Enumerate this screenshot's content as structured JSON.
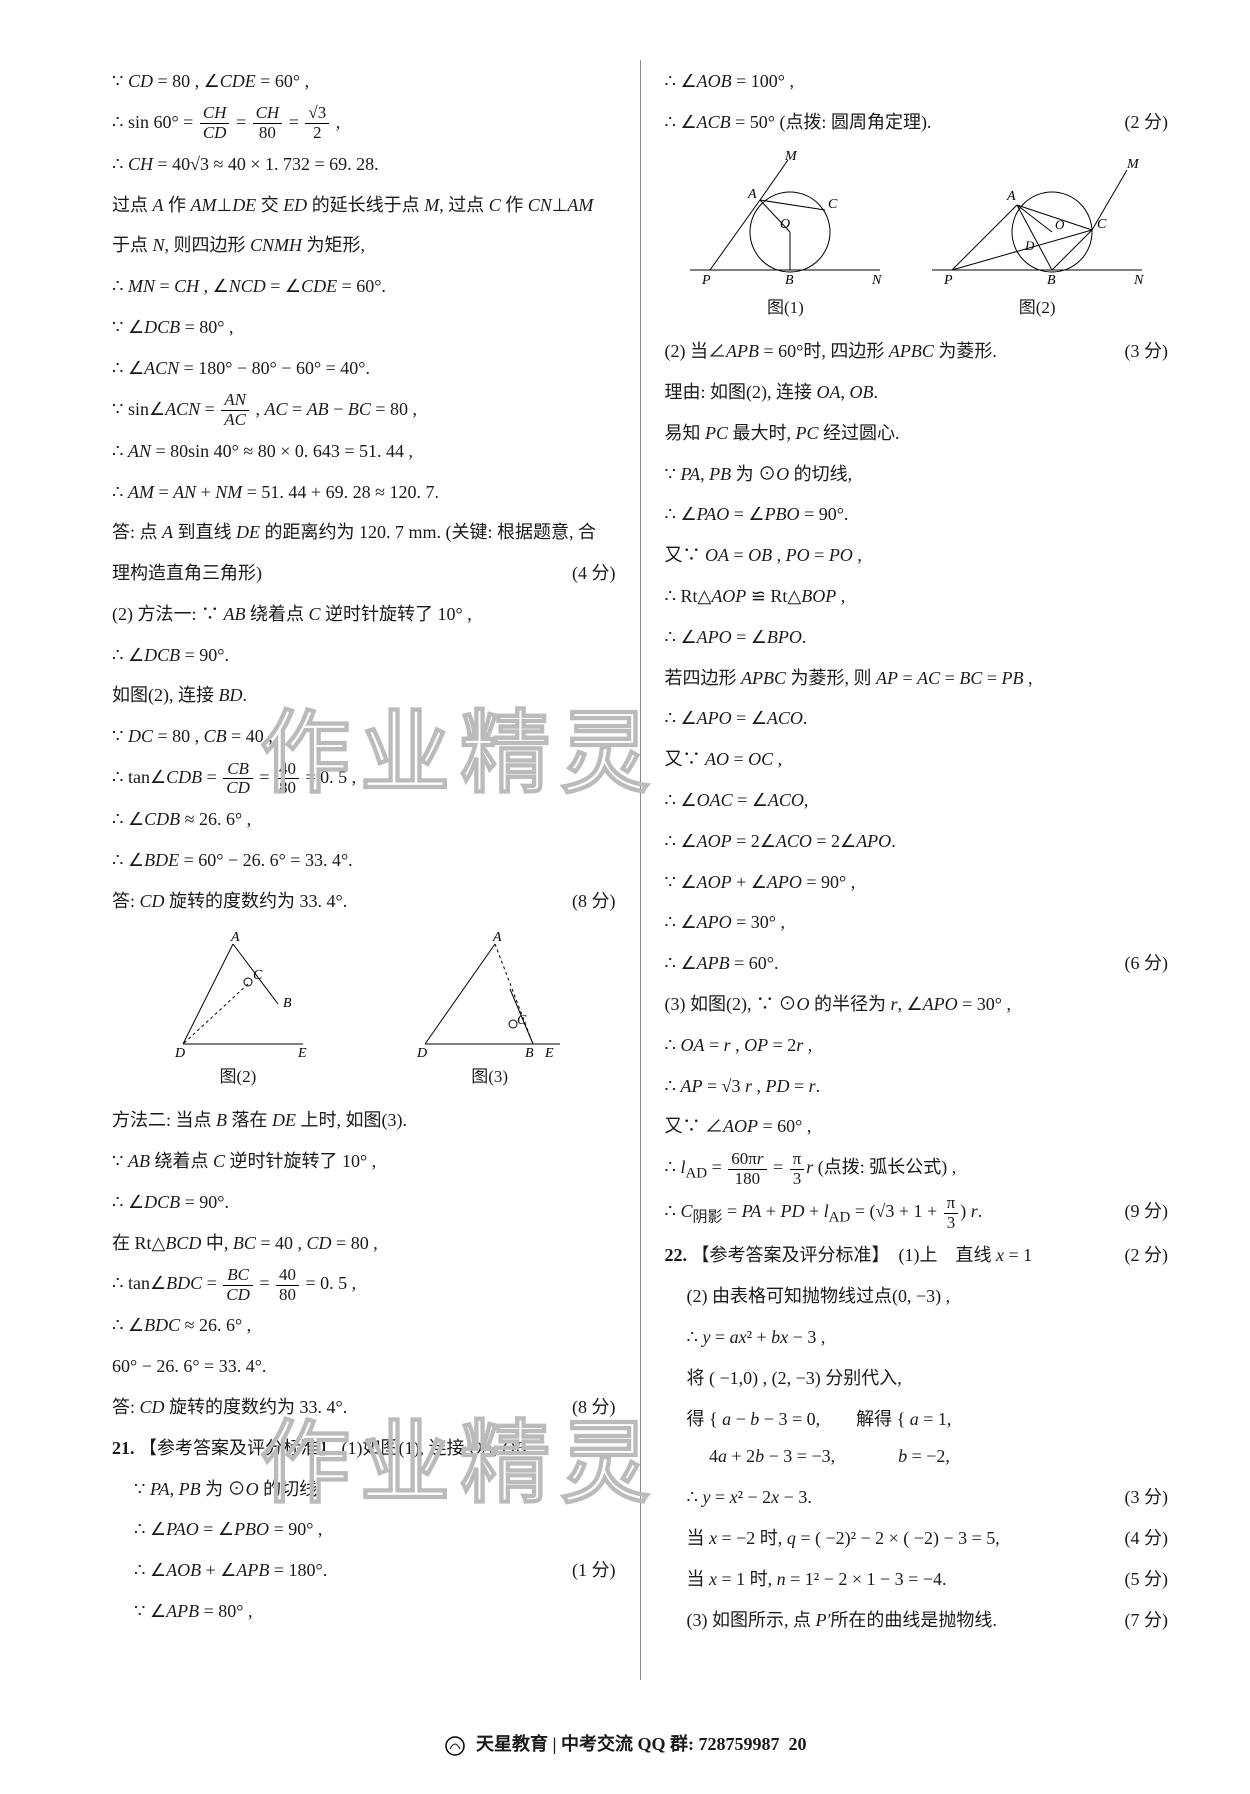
{
  "watermark": "作业精灵",
  "left": {
    "lines": [
      "∵ <span class='it'>CD</span> = 80 , ∠<span class='it'>CDE</span> = 60° ,",
      "∴ sin 60° = <span class='frac'><span class='num'><span class=it>CH</span></span><span class='den'><span class=it>CD</span></span></span> = <span class='frac'><span class='num'><span class=it>CH</span></span><span class='den'>80</span></span> = <span class='frac'><span class='num'>√3</span><span class='den'>2</span></span> ,",
      "∴ <span class='it'>CH</span> = 40√3 ≈ 40 × 1. 732 = 69. 28.",
      "过点 <span class='it'>A</span> 作 <span class='it'>AM</span>⊥<span class='it'>DE</span> 交 <span class='it'>ED</span> 的延长线于点 <span class='it'>M</span>, 过点 <span class='it'>C</span> 作 <span class='it'>CN</span>⊥<span class='it'>AM</span>",
      "于点 <span class='it'>N</span>, 则四边形 <span class='it'>CNMH</span> 为矩形,",
      "∴ <span class='it'>MN</span> = <span class='it'>CH</span> , ∠<span class='it'>NCD</span> = ∠<span class='it'>CDE</span> = 60°.",
      "∵ ∠<span class='it'>DCB</span> = 80° ,",
      "∴ ∠<span class='it'>ACN</span> = 180° − 80° − 60° = 40°.",
      "∵ sin∠<span class='it'>ACN</span> = <span class='frac'><span class='num'><span class=it>AN</span></span><span class='den'><span class=it>AC</span></span></span> , <span class='it'>AC</span> = <span class='it'>AB</span> − <span class='it'>BC</span> = 80 ,",
      "∴ <span class='it'>AN</span> = 80sin 40° ≈ 80 × 0. 643 = 51. 44 ,",
      "∴ <span class='it'>AM</span> = <span class='it'>AN</span> + <span class='it'>NM</span> = 51. 44 + 69. 28 ≈ 120. 7.",
      "答: 点 <span class='it'>A</span> 到直线 <span class='it'>DE</span> 的距离约为 120. 7 mm. (关键: 根据题意, 合",
      "理构造直角三角形)<span class='score'>(4 分)</span>",
      "(2) 方法一: ∵ <span class='it'>AB</span> 绕着点 <span class='it'>C</span> 逆时针旋转了 10° ,",
      "∴ ∠<span class='it'>DCB</span> = 90°.",
      "如图(2), 连接 <span class='it'>BD</span>.",
      "∵ <span class='it'>DC</span> = 80 , <span class='it'>CB</span> = 40 ,",
      "∴ tan∠<span class='it'>CDB</span> = <span class='frac'><span class='num'><span class=it>CB</span></span><span class='den'><span class=it>CD</span></span></span> = <span class='frac'><span class='num'>40</span><span class='den'>80</span></span> = 0. 5 ,",
      "∴ ∠<span class='it'>CDB</span> ≈ 26. 6° ,",
      "∴ ∠<span class='it'>BDE</span> = 60° − 26. 6° = 33. 4°.",
      "答: <span class='it'>CD</span> 旋转的度数约为 33. 4°.<span class='score'>(8 分)</span>"
    ],
    "fig2_label": "图(2)",
    "fig3_label": "图(3)",
    "lines2": [
      "方法二: 当点 <span class='it'>B</span> 落在 <span class='it'>DE</span> 上时, 如图(3).",
      "∵ <span class='it'>AB</span> 绕着点 <span class='it'>C</span> 逆时针旋转了 10° ,",
      "∴ ∠<span class='it'>DCB</span> = 90°.",
      "在 Rt△<span class='it'>BCD</span> 中, <span class='it'>BC</span> = 40 , <span class='it'>CD</span> = 80 ,",
      "∴ tan∠<span class='it'>BDC</span> = <span class='frac'><span class='num'><span class=it>BC</span></span><span class='den'><span class=it>CD</span></span></span> = <span class='frac'><span class='num'>40</span><span class='den'>80</span></span> = 0. 5 ,",
      "∴ ∠<span class='it'>BDC</span> ≈ 26. 6° ,",
      "60° − 26. 6° = 33. 4°.",
      "答: <span class='it'>CD</span> 旋转的度数约为 33. 4°.<span class='score'>(8 分)</span>"
    ],
    "q21": "21. 【参考答案及评分标准】 (1)如图(1), 连接 <span class='it'>OA</span>, <span class='it'>OB</span>.",
    "q21_lines": [
      "∵ <span class='it'>PA</span>, <span class='it'>PB</span> 为 ⊙<span class='it'>O</span> 的切线,",
      "∴ ∠<span class='it'>PAO</span> = ∠<span class='it'>PBO</span> = 90° ,",
      "∴ ∠<span class='it'>AOB</span> + ∠<span class='it'>APB</span> = 180°.<span class='score'>(1 分)</span>",
      "∵ ∠<span class='it'>APB</span> = 80° ,"
    ]
  },
  "right": {
    "lines": [
      "∴ ∠<span class='it'>AOB</span> = 100° ,",
      "∴ ∠<span class='it'>ACB</span> = 50° (点拨: 圆周角定理).<span class='score'>(2 分)</span>"
    ],
    "fig1_label": "图(1)",
    "fig2_label": "图(2)",
    "lines2": [
      "(2) 当∠<span class='it'>APB</span> = 60°时, 四边形 <span class='it'>APBC</span> 为菱形.<span class='score'>(3 分)</span>",
      "理由: 如图(2), 连接 <span class='it'>OA</span>, <span class='it'>OB</span>.",
      "易知 <span class='it'>PC</span> 最大时, <span class='it'>PC</span> 经过圆心.",
      "∵ <span class='it'>PA</span>, <span class='it'>PB</span> 为 ⊙<span class='it'>O</span> 的切线,",
      "∴ ∠<span class='it'>PAO</span> = ∠<span class='it'>PBO</span> = 90°.",
      "又∵ <span class='it'>OA</span> = <span class='it'>OB</span> , <span class='it'>PO</span> = <span class='it'>PO</span> ,",
      "∴ Rt△<span class='it'>AOP</span> ≌ Rt△<span class='it'>BOP</span> ,",
      "∴ ∠<span class='it'>APO</span> = ∠<span class='it'>BPO</span>.",
      "若四边形 <span class='it'>APBC</span> 为菱形, 则 <span class='it'>AP</span> = <span class='it'>AC</span> = <span class='it'>BC</span> = <span class='it'>PB</span> ,",
      "∴ ∠<span class='it'>APO</span> = ∠<span class='it'>ACO</span>.",
      "又∵ <span class='it'>AO</span> = <span class='it'>OC</span> ,",
      "∴ ∠<span class='it'>OAC</span> = ∠<span class='it'>ACO</span>,",
      "∴ ∠<span class='it'>AOP</span> = 2∠<span class='it'>ACO</span> = 2∠<span class='it'>APO</span>.",
      "∵ ∠<span class='it'>AOP</span> + ∠<span class='it'>APO</span> = 90° ,",
      "∴ ∠<span class='it'>APO</span> = 30° ,",
      "∴ ∠<span class='it'>APB</span> = 60°.<span class='score'>(6 分)</span>",
      "(3) 如图(2), ∵ ⊙<span class='it'>O</span> 的半径为 <span class='it'>r</span>, ∠<span class='it'>APO</span> = 30° ,",
      "∴ <span class='it'>OA</span> = <span class='it'>r</span> , <span class='it'>OP</span> = 2<span class='it'>r</span> ,",
      "∴ <span class='it'>AP</span> = √3 <span class='it'>r</span> , <span class='it'>PD</span> = <span class='it'>r</span>.",
      "又∵ ∠<span class='it'>AOP</span> = 60° ,",
      "∴ <span class='it'>l</span><sub>AD</sub> = <span class='frac'><span class='num'>60π<span class=it>r</span></span><span class='den'>180</span></span> = <span class='frac'><span class='num'>π</span><span class='den'>3</span></span><span class='it'>r</span> (点拨: 弧长公式) ,",
      "∴ <span class='it'>C</span><sub>阴影</sub> = <span class='it'>PA</span> + <span class='it'>PD</span> + <span class='it'>l</span><sub>AD</sub> = (√3 + 1 + <span class='frac'><span class='num'>π</span><span class='den'>3</span></span>) <span class='it'>r</span>.<span class='score'>(9 分)</span>"
    ],
    "q22": "22. 【参考答案及评分标准】　(1)上　直线 <span class='it'>x</span> = 1<span class='score'>(2 分)</span>",
    "q22_lines": [
      "(2) 由表格可知抛物线过点(0, −3) ,",
      "∴ <span class='it'>y</span> = <span class='it'>ax</span>² + <span class='it'>bx</span> − 3 ,",
      "将 ( −1,0) , (2, −3) 分别代入,",
      "得 &#123; <span class='it'>a</span> − <span class='it'>b</span> − 3 = 0,　　解得 &#123; <span class='it'>a</span> = 1,<br>&nbsp;&nbsp;&nbsp;&nbsp;&nbsp;4<span class='it'>a</span> + 2<span class='it'>b</span> − 3 = −3,　　　&nbsp;&nbsp;<span class='it'>b</span> = −2,",
      "∴ <span class='it'>y</span> = <span class='it'>x</span>² − 2<span class='it'>x</span> − 3.<span class='score'>(3 分)</span>",
      "当 <span class='it'>x</span> = −2 时, <span class='it'>q</span> = ( −2)² − 2 × ( −2) − 3 = 5,<span class='score'>(4 分)</span>",
      "当 <span class='it'>x</span> = 1 时, <span class='it'>n</span> = 1² − 2 × 1 − 3 = −4.<span class='score'>(5 分)</span>",
      "(3) 如图所示, 点 <span class='it'>P′</span>所在的曲线是抛物线.<span class='score'>(7 分)</span>"
    ]
  },
  "footer": {
    "brand": "天星教育",
    "sep": "|",
    "group": "中考交流 QQ 群: 728759987",
    "page": "20"
  },
  "colors": {
    "text": "#1a1a1a",
    "bg": "#ffffff",
    "divider": "#888888",
    "wm_stroke": "#bbbbbb"
  }
}
